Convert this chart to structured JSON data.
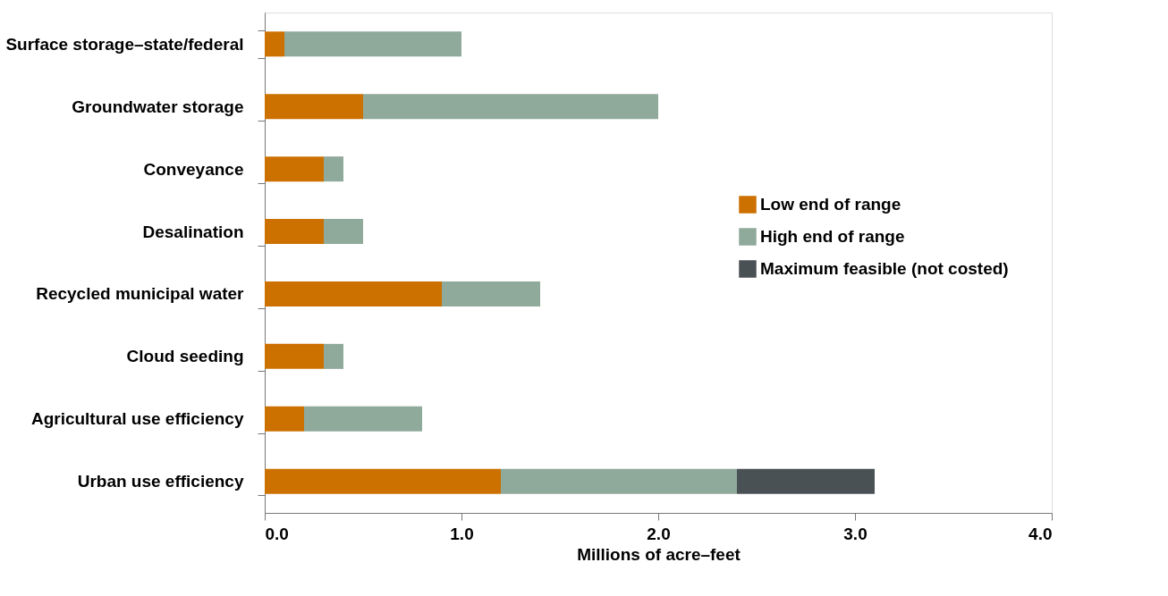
{
  "chart_data": {
    "type": "bar",
    "orientation": "horizontal",
    "stacked": true,
    "xlabel": "Millions of acre–feet",
    "categories": [
      "Surface storage–state/federal",
      "Groundwater storage",
      "Conveyance",
      "Desalination",
      "Recycled municipal water",
      "Cloud seeding",
      "Agricultural use efficiency",
      "Urban use efficiency"
    ],
    "series": [
      {
        "name": "Low end of range",
        "color": "#cc7000",
        "values": [
          0.1,
          0.5,
          0.3,
          0.3,
          0.9,
          0.3,
          0.2,
          1.2
        ]
      },
      {
        "name": "High end of range",
        "color": "#8fa99b",
        "values": [
          0.9,
          1.5,
          0.1,
          0.2,
          0.5,
          0.1,
          0.6,
          1.2
        ]
      },
      {
        "name": "Maximum feasible (not costed)",
        "color": "#4a5155",
        "values": [
          null,
          null,
          null,
          null,
          null,
          null,
          null,
          0.7
        ]
      }
    ],
    "xlim": [
      0,
      4
    ],
    "xticks": [
      {
        "value": 0,
        "label": "0.0"
      },
      {
        "value": 1,
        "label": "1.0"
      },
      {
        "value": 2,
        "label": "2.0"
      },
      {
        "value": 3,
        "label": "3.0"
      },
      {
        "value": 4,
        "label": "4.0"
      }
    ],
    "grid": false,
    "legend": "right"
  }
}
